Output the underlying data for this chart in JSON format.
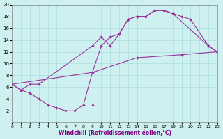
{
  "xlabel": "Windchill (Refroidissement éolien,°C)",
  "bg_color": "#cff0f0",
  "line_color": "#993399",
  "xlim": [
    0,
    23
  ],
  "ylim": [
    0,
    20
  ],
  "xticks": [
    0,
    1,
    2,
    3,
    4,
    5,
    6,
    7,
    8,
    9,
    10,
    11,
    12,
    13,
    14,
    15,
    16,
    17,
    18,
    19,
    20,
    21,
    22,
    23
  ],
  "yticks": [
    2,
    4,
    6,
    8,
    10,
    12,
    14,
    16,
    18,
    20
  ],
  "curve1_x": [
    0,
    1,
    2,
    3,
    9,
    10,
    11,
    12,
    13,
    14,
    15,
    16,
    17,
    18,
    19,
    20,
    22,
    23
  ],
  "curve1_y": [
    6.5,
    5.5,
    6.5,
    6.5,
    13.0,
    14.5,
    13.0,
    15.0,
    17.5,
    18.0,
    18.0,
    19.0,
    19.0,
    18.5,
    18.0,
    17.5,
    13.0,
    12.0
  ],
  "curve2_x": [
    0,
    1,
    2,
    3,
    4,
    5,
    6,
    7,
    8,
    9,
    10,
    11,
    12,
    13,
    14,
    15,
    16,
    17,
    18,
    22,
    23
  ],
  "curve2_y": [
    6.5,
    5.5,
    5.0,
    4.0,
    3.0,
    2.5,
    2.0,
    2.0,
    3.0,
    8.5,
    13.0,
    14.5,
    15.0,
    17.5,
    18.0,
    18.0,
    19.0,
    19.0,
    18.5,
    13.0,
    12.0
  ],
  "curve3_x": [
    0,
    9,
    14,
    19,
    23
  ],
  "curve3_y": [
    6.5,
    8.5,
    11.0,
    11.5,
    12.0
  ],
  "marker_extra_x": [
    9
  ],
  "marker_extra_y": [
    3.0
  ]
}
